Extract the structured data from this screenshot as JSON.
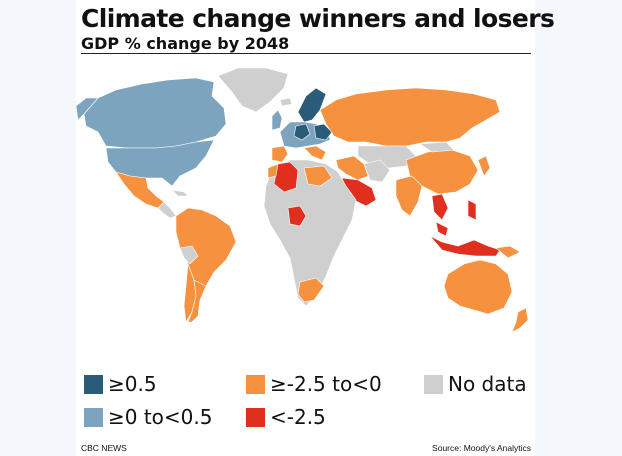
{
  "title": "Climate change winners and losers",
  "subtitle": "GDP % change by 2048",
  "colors": {
    "gain_high": "#2a5b78",
    "gain_low": "#7da4bf",
    "loss_moderate": "#f6913f",
    "loss_severe": "#e02f1f",
    "no_data": "#cfcfcf",
    "background": "#ffffff"
  },
  "legend": [
    {
      "key": "gain_high",
      "label": "≥0.5"
    },
    {
      "key": "loss_moderate",
      "label": "≥-2.5 to<0"
    },
    {
      "key": "no_data",
      "label": "No data"
    },
    {
      "key": "gain_low",
      "label": "≥0 to<0.5"
    },
    {
      "key": "loss_severe",
      "label": "<-2.5"
    }
  ],
  "footer": {
    "left": "CBC NEWS",
    "right": "Source: Moody's Analytics"
  }
}
